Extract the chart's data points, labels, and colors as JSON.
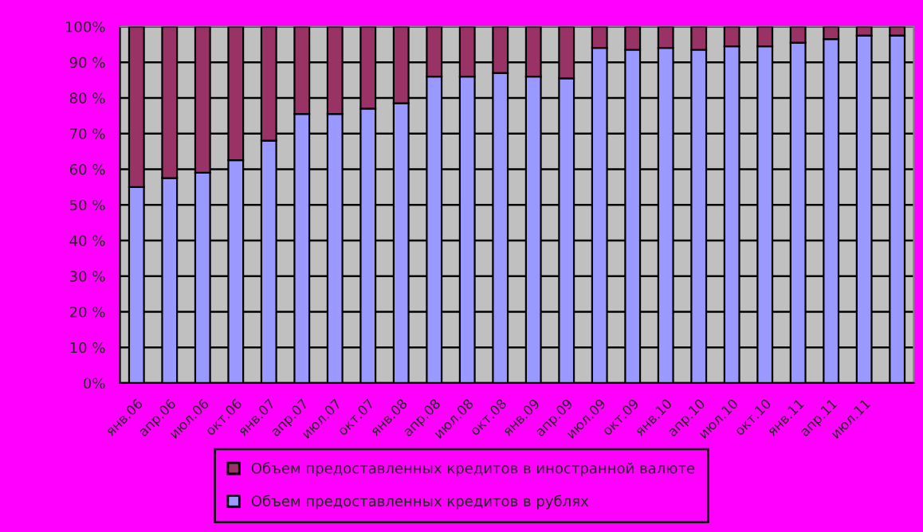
{
  "chart_data": {
    "type": "bar",
    "stacked": true,
    "categories": [
      "янв.06",
      "апр.06",
      "июл.06",
      "окт.06",
      "янв.07",
      "апр.07",
      "июл.07",
      "окт.07",
      "янв.08",
      "апр.08",
      "июл.08",
      "окт.08",
      "янв.09",
      "апр.09",
      "июл.09",
      "окт.09",
      "янв.10",
      "апр.10",
      "июл.10",
      "окт.10",
      "янв.11",
      "апр.11",
      "июл.11",
      null
    ],
    "series": [
      {
        "name": "Объем предоставленных кредитов в рублях",
        "color": "#9999ff",
        "values": [
          55,
          57.5,
          59,
          62.5,
          68,
          75.5,
          75.5,
          77,
          78.5,
          86,
          86,
          87,
          86,
          85.5,
          94,
          93.5,
          94,
          93.5,
          94.5,
          94.5,
          95.5,
          96.5,
          97.5,
          97.5
        ]
      },
      {
        "name": "Объем предоставленных кредитов в иностранной валюте",
        "color": "#993366",
        "values": [
          45,
          42.5,
          41,
          37.5,
          32,
          24.5,
          24.5,
          23,
          21.5,
          14,
          14,
          13,
          14,
          14.5,
          6,
          6.5,
          6,
          6.5,
          5.5,
          5.5,
          4.5,
          3.5,
          2.5,
          2.5
        ]
      }
    ],
    "ylim": [
      0,
      100
    ],
    "yticks": [
      {
        "value": 0,
        "label": "0%"
      },
      {
        "value": 10,
        "label": "10 %"
      },
      {
        "value": 20,
        "label": "20 %"
      },
      {
        "value": 30,
        "label": "30 %"
      },
      {
        "value": 40,
        "label": "40 %"
      },
      {
        "value": 50,
        "label": "50 %"
      },
      {
        "value": 60,
        "label": "60 %"
      },
      {
        "value": 70,
        "label": "70 %"
      },
      {
        "value": 80,
        "label": "80 %"
      },
      {
        "value": 90,
        "label": "90 %"
      },
      {
        "value": 100,
        "label": "100%"
      }
    ],
    "grid": "y",
    "legend": "bottom"
  }
}
